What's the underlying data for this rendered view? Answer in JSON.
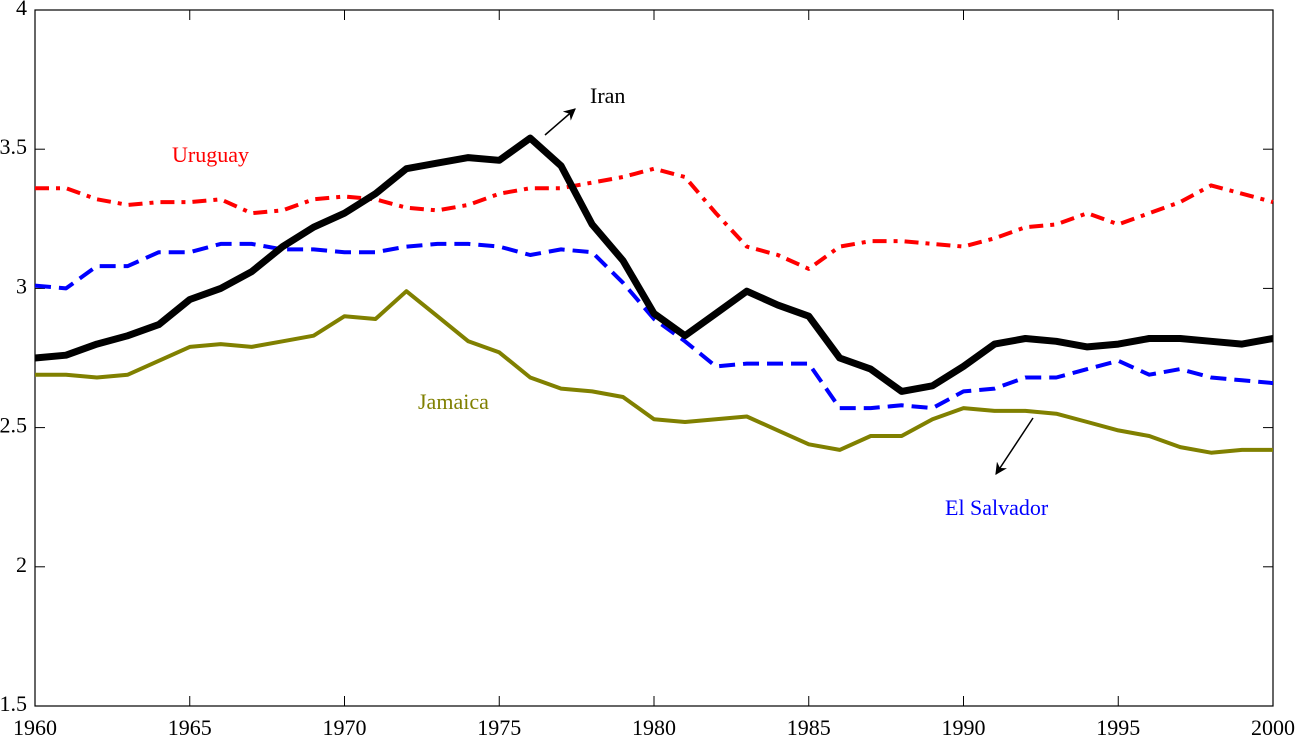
{
  "chart_data": {
    "type": "line",
    "x": [
      1960,
      1961,
      1962,
      1963,
      1964,
      1965,
      1966,
      1967,
      1968,
      1969,
      1970,
      1971,
      1972,
      1973,
      1974,
      1975,
      1976,
      1977,
      1978,
      1979,
      1980,
      1981,
      1982,
      1983,
      1984,
      1985,
      1986,
      1987,
      1988,
      1989,
      1990,
      1991,
      1992,
      1993,
      1994,
      1995,
      1996,
      1997,
      1998,
      1999,
      2000
    ],
    "series": [
      {
        "name": "Uruguay",
        "color": "#ff0000",
        "linestyle": "dashdot",
        "linewidth": 4,
        "values": [
          3.36,
          3.36,
          3.32,
          3.3,
          3.31,
          3.31,
          3.32,
          3.27,
          3.28,
          3.32,
          3.33,
          3.32,
          3.29,
          3.28,
          3.3,
          3.34,
          3.36,
          3.36,
          3.38,
          3.4,
          3.43,
          3.4,
          3.27,
          3.15,
          3.12,
          3.07,
          3.15,
          3.17,
          3.17,
          3.16,
          3.15,
          3.18,
          3.22,
          3.23,
          3.27,
          3.23,
          3.27,
          3.31,
          3.37,
          3.34,
          3.31
        ]
      },
      {
        "name": "El Salvador",
        "color": "#0000ff",
        "linestyle": "dashed",
        "linewidth": 4,
        "values": [
          3.01,
          3.0,
          3.08,
          3.08,
          3.13,
          3.13,
          3.16,
          3.16,
          3.14,
          3.14,
          3.13,
          3.13,
          3.15,
          3.16,
          3.16,
          3.15,
          3.12,
          3.14,
          3.13,
          3.02,
          2.89,
          2.81,
          2.72,
          2.73,
          2.73,
          2.73,
          2.57,
          2.57,
          2.58,
          2.57,
          2.63,
          2.64,
          2.68,
          2.68,
          2.71,
          2.74,
          2.69,
          2.71,
          2.68,
          2.67,
          2.66
        ]
      },
      {
        "name": "Jamaica",
        "color": "#808000",
        "linestyle": "solid",
        "linewidth": 4,
        "values": [
          2.69,
          2.69,
          2.68,
          2.69,
          2.74,
          2.79,
          2.8,
          2.79,
          2.81,
          2.83,
          2.9,
          2.89,
          2.99,
          2.9,
          2.81,
          2.77,
          2.68,
          2.64,
          2.63,
          2.61,
          2.53,
          2.52,
          2.53,
          2.54,
          2.49,
          2.44,
          2.42,
          2.47,
          2.47,
          2.53,
          2.57,
          2.56,
          2.56,
          2.55,
          2.52,
          2.49,
          2.47,
          2.43,
          2.41,
          2.42,
          2.42
        ]
      },
      {
        "name": "Iran",
        "color": "#000000",
        "linestyle": "solid",
        "linewidth": 7,
        "values": [
          2.75,
          2.76,
          2.8,
          2.83,
          2.87,
          2.96,
          3.0,
          3.06,
          3.15,
          3.22,
          3.27,
          3.34,
          3.43,
          3.45,
          3.47,
          3.46,
          3.54,
          3.44,
          3.23,
          3.1,
          2.91,
          2.83,
          2.91,
          2.99,
          2.94,
          2.9,
          2.75,
          2.71,
          2.63,
          2.65,
          2.72,
          2.8,
          2.82,
          2.81,
          2.79,
          2.8,
          2.82,
          2.82,
          2.81,
          2.8,
          2.82
        ]
      }
    ],
    "xlim": [
      1960,
      2000
    ],
    "xticks": [
      1960,
      1965,
      1970,
      1975,
      1980,
      1985,
      1990,
      1995,
      2000
    ],
    "ylim": [
      1.5,
      4
    ],
    "yticks": [
      1.5,
      2,
      2.5,
      3,
      3.5,
      4
    ],
    "grid": false
  }
}
